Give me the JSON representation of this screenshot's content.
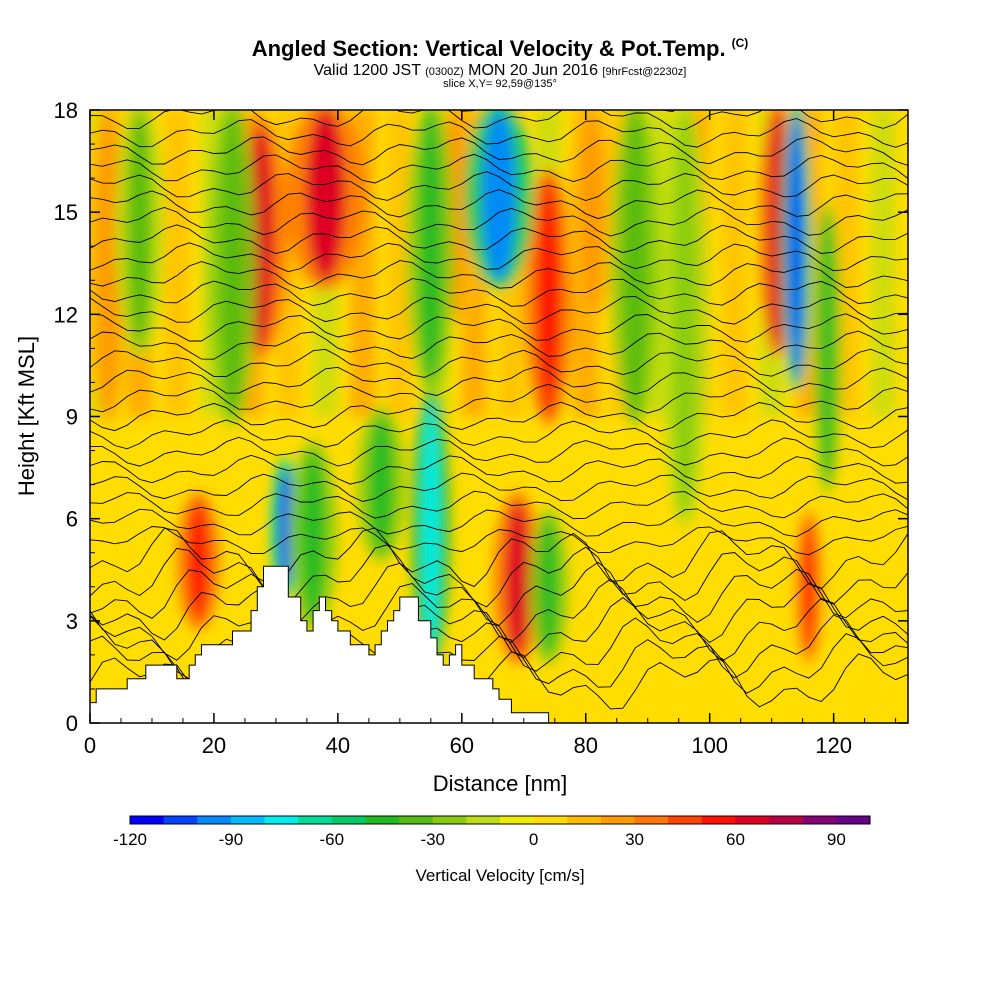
{
  "header": {
    "title": "Angled Section: Vertical Velocity & Pot.Temp.",
    "title_unit": "(C)",
    "valid_prefix": "Valid 1200 JST",
    "valid_utc": "(0300Z)",
    "valid_date": "MON 20 Jun 2016",
    "forecast": "[9hrFcst@2230z]",
    "slice": "slice X,Y= 92,59@135°"
  },
  "chart_data": {
    "type": "heatmap",
    "xlabel": "Distance [nm]",
    "ylabel": "Height [Kft MSL]",
    "xlim": [
      0,
      132
    ],
    "ylim": [
      0,
      18
    ],
    "x_ticks": [
      "0",
      "20",
      "40",
      "60",
      "80",
      "100",
      "120"
    ],
    "y_ticks": [
      "0",
      "3",
      "6",
      "9",
      "12",
      "15",
      "18"
    ],
    "colorbar": {
      "label": "Vertical Velocity [cm/s]",
      "tick_labels": [
        "-120",
        "-90",
        "-60",
        "-30",
        "0",
        "30",
        "60",
        "90"
      ],
      "min": -120,
      "max": 100,
      "colors": [
        "#0000ff",
        "#0044ff",
        "#0088ff",
        "#00bbff",
        "#00eeee",
        "#00dd99",
        "#00cc66",
        "#22bb22",
        "#55bb11",
        "#88cc11",
        "#bbdd11",
        "#eeee00",
        "#ffdd00",
        "#ffbb00",
        "#ff9900",
        "#ff7700",
        "#ff4400",
        "#ff1100",
        "#dd0022",
        "#bb0044",
        "#880077",
        "#660088"
      ]
    },
    "updraft_bands": [
      {
        "x": 3,
        "w": 2.5,
        "y0": 9,
        "y1": 18,
        "value": 20
      },
      {
        "x": 17.5,
        "w": 2.2,
        "y0": 3,
        "y1": 6.5,
        "value": 55
      },
      {
        "x": 27.5,
        "w": 2.8,
        "y0": 11,
        "y1": 17.5,
        "value": 60
      },
      {
        "x": 38,
        "w": 4,
        "y0": 13,
        "y1": 18,
        "value": 65
      },
      {
        "x": 59,
        "w": 2.5,
        "y0": 12,
        "y1": 18,
        "value": 30
      },
      {
        "x": 69,
        "w": 2.5,
        "y0": 2,
        "y1": 6.5,
        "value": 60
      },
      {
        "x": 74,
        "w": 2.5,
        "y0": 9,
        "y1": 16,
        "value": 55
      },
      {
        "x": 111,
        "w": 2,
        "y0": 11,
        "y1": 18,
        "value": 60
      },
      {
        "x": 116,
        "w": 1.5,
        "y0": 2,
        "y1": 6,
        "value": 50
      },
      {
        "x": 81,
        "w": 2.5,
        "y0": 12,
        "y1": 18,
        "value": 25
      }
    ],
    "downdraft_bands": [
      {
        "x": 8,
        "w": 2.5,
        "y0": 11,
        "y1": 18,
        "value": -35
      },
      {
        "x": 23,
        "w": 2.5,
        "y0": 9,
        "y1": 18,
        "value": -40
      },
      {
        "x": 31.5,
        "w": 1.5,
        "y0": 4,
        "y1": 7.5,
        "value": -110
      },
      {
        "x": 36,
        "w": 2.5,
        "y0": 3,
        "y1": 8,
        "value": -45
      },
      {
        "x": 47,
        "w": 2.5,
        "y0": 5,
        "y1": 9,
        "value": -50
      },
      {
        "x": 55,
        "w": 2,
        "y0": 2,
        "y1": 9.5,
        "value": -80
      },
      {
        "x": 55,
        "w": 2.5,
        "y0": 10,
        "y1": 18,
        "value": -45
      },
      {
        "x": 66,
        "w": 3.5,
        "y0": 13,
        "y1": 18,
        "value": -100
      },
      {
        "x": 74,
        "w": 2,
        "y0": 2,
        "y1": 6,
        "value": -50
      },
      {
        "x": 88,
        "w": 2.5,
        "y0": 9,
        "y1": 18,
        "value": -40
      },
      {
        "x": 96,
        "w": 2.5,
        "y0": 6,
        "y1": 18,
        "value": -30
      },
      {
        "x": 114,
        "w": 1.5,
        "y0": 10,
        "y1": 18,
        "value": -110
      },
      {
        "x": 119,
        "w": 1.5,
        "y0": 7,
        "y1": 15,
        "value": -45
      }
    ],
    "terrain_profile": [
      [
        0,
        0.6
      ],
      [
        1,
        1.0
      ],
      [
        5,
        1.0
      ],
      [
        6,
        1.3
      ],
      [
        9,
        1.7
      ],
      [
        13,
        1.7
      ],
      [
        14,
        1.3
      ],
      [
        15,
        1.3
      ],
      [
        16,
        1.7
      ],
      [
        17,
        2.0
      ],
      [
        18,
        2.3
      ],
      [
        22,
        2.3
      ],
      [
        23,
        2.7
      ],
      [
        25,
        2.7
      ],
      [
        26,
        3.3
      ],
      [
        27,
        4.0
      ],
      [
        28,
        4.6
      ],
      [
        31,
        4.6
      ],
      [
        32,
        3.7
      ],
      [
        34,
        3.0
      ],
      [
        35,
        2.7
      ],
      [
        36,
        3.3
      ],
      [
        37,
        3.7
      ],
      [
        38,
        3.3
      ],
      [
        39,
        3.0
      ],
      [
        40,
        2.7
      ],
      [
        42,
        2.3
      ],
      [
        45,
        2.0
      ],
      [
        46,
        2.3
      ],
      [
        47,
        2.7
      ],
      [
        48,
        3.0
      ],
      [
        49,
        3.3
      ],
      [
        50,
        3.7
      ],
      [
        52,
        3.7
      ],
      [
        53,
        3.0
      ],
      [
        55,
        2.5
      ],
      [
        56,
        2.0
      ],
      [
        57,
        1.7
      ],
      [
        58,
        2.0
      ],
      [
        59,
        2.3
      ],
      [
        60,
        1.7
      ],
      [
        62,
        1.3
      ],
      [
        65,
        1.0
      ],
      [
        66,
        0.7
      ],
      [
        68,
        0.3
      ],
      [
        73,
        0.3
      ],
      [
        74,
        0.0
      ],
      [
        132,
        0.0
      ]
    ]
  }
}
